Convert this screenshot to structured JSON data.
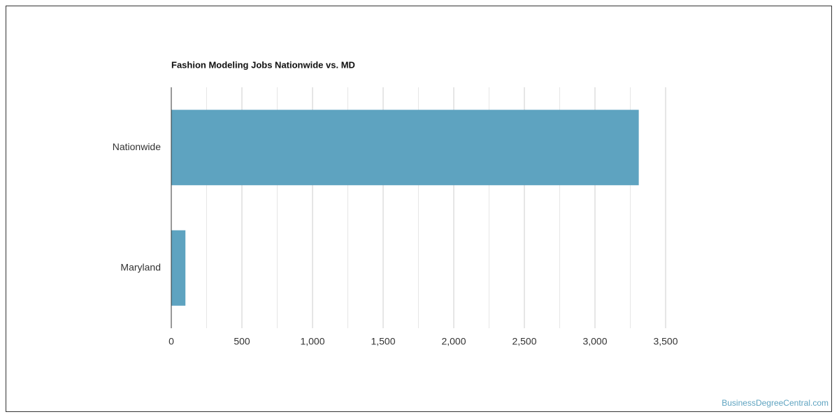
{
  "chart_data": {
    "type": "hbar",
    "title": "Fashion Modeling Jobs Nationwide vs. MD",
    "categories": [
      "Nationwide",
      "Maryland"
    ],
    "values": [
      3310,
      100
    ],
    "color": "#5ea3c0",
    "xlim": [
      0,
      3500
    ],
    "xticks": [
      0,
      500,
      {
        "value": 1000,
        "label": "1,000"
      },
      {
        "value": 1500,
        "label": "1,500"
      },
      {
        "value": 2000,
        "label": "2,000"
      },
      {
        "value": 2500,
        "label": "2,500"
      },
      {
        "value": 3000,
        "label": "3,000"
      },
      {
        "value": 3500,
        "label": "3,500"
      }
    ],
    "minor_xticks": [
      250,
      750,
      1250,
      1750,
      2250,
      2750,
      3250
    ],
    "grid": true,
    "source": "BusinessDegreeCentral.com"
  }
}
